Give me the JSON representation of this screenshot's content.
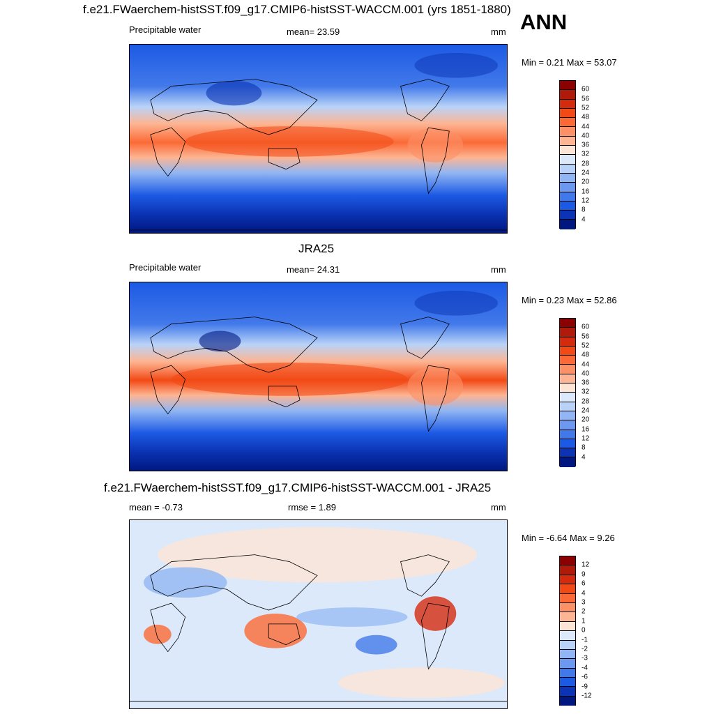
{
  "header": {
    "title": "f.e21.FWaerchem-histSST.f09_g17.CMIP6-histSST-WACCM.001 (yrs 1851-1880)",
    "season": "ANN"
  },
  "panels": [
    {
      "id": "model",
      "title": "",
      "left_label": "Precipitable water",
      "center_label": "mean=  23.59",
      "units": "mm",
      "minmax": "Min =   0.21 Max =  53.07",
      "levels": [
        "60",
        "56",
        "52",
        "48",
        "44",
        "40",
        "36",
        "32",
        "28",
        "24",
        "20",
        "16",
        "12",
        "8",
        "4"
      ],
      "colors": [
        "#8b0000",
        "#b01a0a",
        "#d42b0f",
        "#f24a16",
        "#fb6a36",
        "#fc9066",
        "#fdb593",
        "#fde5d6",
        "#dbe9fb",
        "#b9d3f8",
        "#92b6f3",
        "#6c98ef",
        "#4279ea",
        "#1c5ae4",
        "#0b33b3",
        "#001780"
      ]
    },
    {
      "id": "obs",
      "title": "JRA25",
      "left_label": "Precipitable water",
      "center_label": "mean=  24.31",
      "units": "mm",
      "minmax": "Min =   0.23 Max =  52.86",
      "levels": [
        "60",
        "56",
        "52",
        "48",
        "44",
        "40",
        "36",
        "32",
        "28",
        "24",
        "20",
        "16",
        "12",
        "8",
        "4"
      ],
      "colors": [
        "#8b0000",
        "#b01a0a",
        "#d42b0f",
        "#f24a16",
        "#fb6a36",
        "#fc9066",
        "#fdb593",
        "#fde5d6",
        "#dbe9fb",
        "#b9d3f8",
        "#92b6f3",
        "#6c98ef",
        "#4279ea",
        "#1c5ae4",
        "#0b33b3",
        "#001780"
      ]
    },
    {
      "id": "diff",
      "title": "f.e21.FWaerchem-histSST.f09_g17.CMIP6-histSST-WACCM.001 - JRA25",
      "left_label": "mean =  -0.73",
      "center_label": "rmse =   1.89",
      "units": "mm",
      "minmax": "Min =  -6.64 Max =   9.26",
      "levels": [
        "12",
        "9",
        "6",
        "4",
        "3",
        "2",
        "1",
        "0",
        "-1",
        "-2",
        "-3",
        "-4",
        "-6",
        "-9",
        "-12"
      ],
      "colors": [
        "#8b0000",
        "#b01a0a",
        "#d42b0f",
        "#f24a16",
        "#fb6a36",
        "#fc9066",
        "#fdb593",
        "#fde5d6",
        "#dbe9fb",
        "#b9d3f8",
        "#92b6f3",
        "#6c98ef",
        "#4279ea",
        "#1c5ae4",
        "#0b33b3",
        "#001780"
      ]
    }
  ]
}
